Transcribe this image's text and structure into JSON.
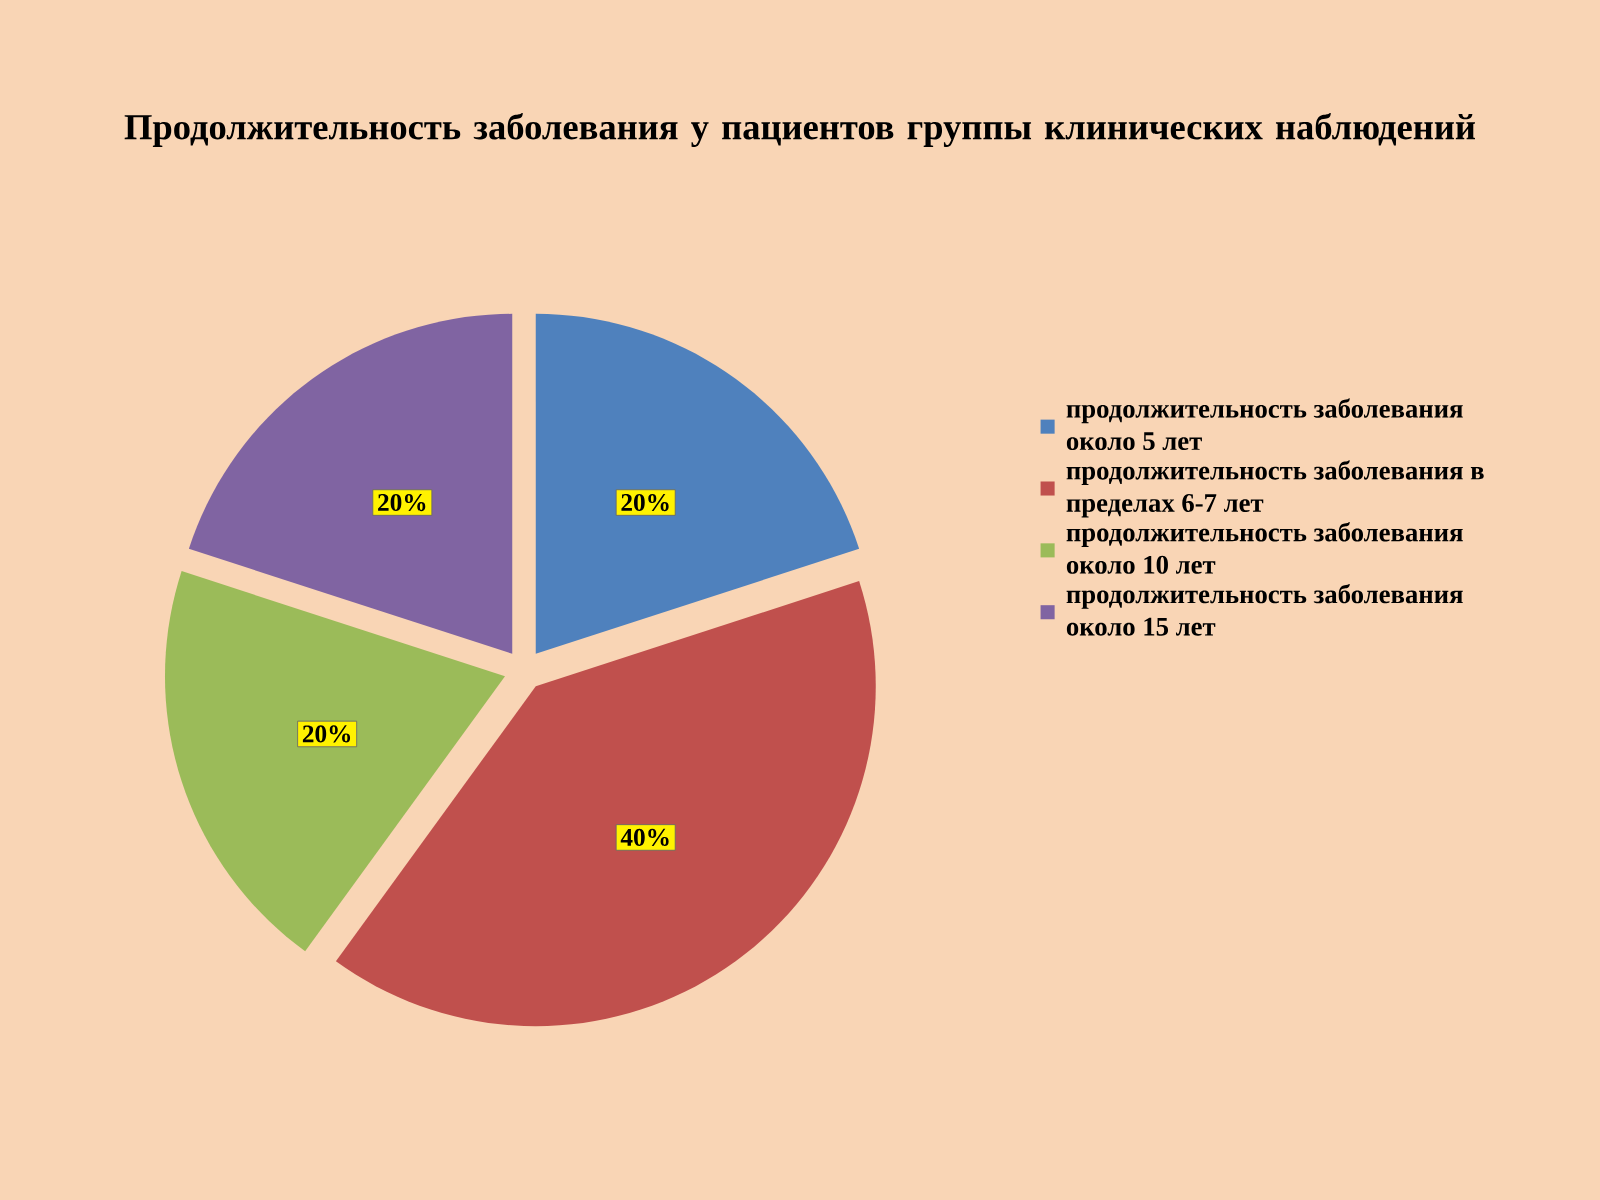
{
  "chart_data": {
    "type": "pie",
    "title": "Продолжительность заболевания у пациентов группы  клинических наблюдений",
    "categories": [
      " продолжительность заболевания около 5 лет",
      "продолжительность заболевания  в пределах 6-7 лет",
      "продолжительность заболевания около 10 лет",
      "продолжительность заболевания около 15 лет"
    ],
    "values": [
      20,
      40,
      20,
      20
    ],
    "value_labels": [
      "20%",
      "40%",
      "20%",
      "20%"
    ],
    "colors": [
      "#4f81bd",
      "#c0504d",
      "#9bbb59",
      "#8064a2"
    ],
    "legend": "right"
  }
}
